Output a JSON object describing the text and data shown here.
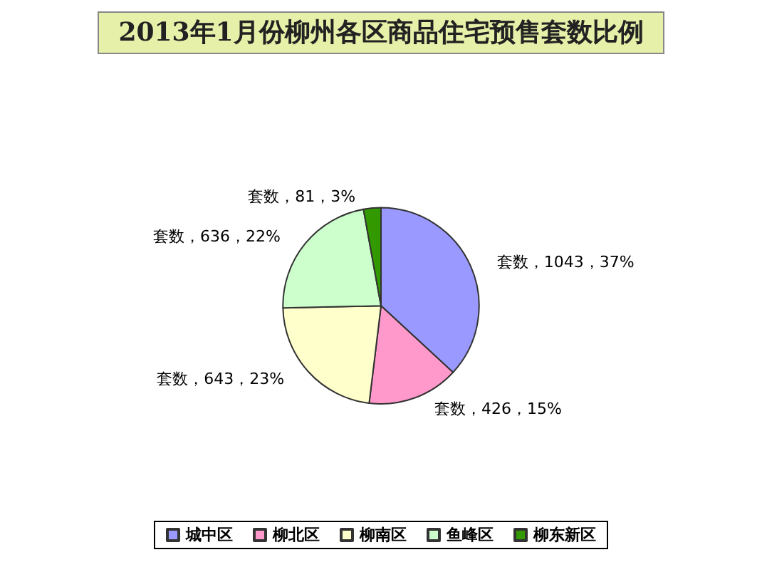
{
  "chart_data": {
    "type": "pie",
    "title": "2013年1月份柳州各区商品住宅预售套数比例",
    "categories": [
      "城中区",
      "柳北区",
      "柳南区",
      "鱼峰区",
      "柳东新区"
    ],
    "values": [
      1043,
      426,
      643,
      636,
      81
    ],
    "colors": [
      "#9999ff",
      "#ff99cc",
      "#ffffcc",
      "#ccffcc",
      "#339900"
    ],
    "value_labels": [
      "套数，1043，37%",
      "套数，426，15%",
      "套数，643，23%",
      "套数，636，22%",
      "套数，81，3%"
    ],
    "legend": "bottom"
  }
}
